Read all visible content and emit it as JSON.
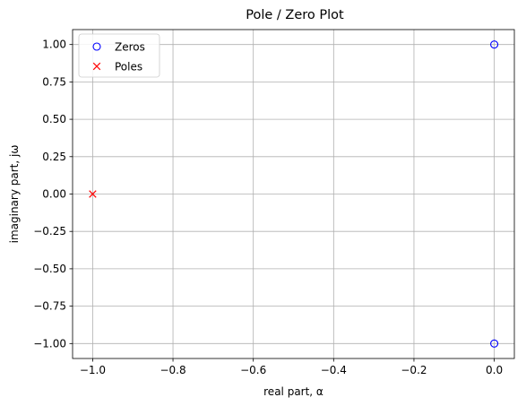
{
  "chart_data": {
    "type": "scatter",
    "title": "Pole / Zero Plot",
    "xlabel": "real part, α",
    "ylabel": "imaginary part, jω",
    "xlim": [
      -1.05,
      0.05
    ],
    "ylim": [
      -1.1,
      1.1
    ],
    "x_ticks": [
      -1.0,
      -0.8,
      -0.6,
      -0.4,
      -0.2,
      0.0
    ],
    "x_tick_labels": [
      "−1.0",
      "−0.8",
      "−0.6",
      "−0.4",
      "−0.2",
      "0.0"
    ],
    "y_ticks": [
      1.0,
      0.75,
      0.5,
      0.25,
      0.0,
      -0.25,
      -0.5,
      -0.75,
      -1.0
    ],
    "y_tick_labels": [
      "1.00",
      "0.75",
      "0.50",
      "0.25",
      "0.00",
      "−0.25",
      "−0.50",
      "−0.75",
      "−1.00"
    ],
    "grid": true,
    "legend_position": "upper-left",
    "series": [
      {
        "name": "Zeros",
        "marker": "circle-open",
        "color": "#0000ff",
        "points": [
          {
            "x": 0.0,
            "y": 1.0
          },
          {
            "x": 0.0,
            "y": -1.0
          }
        ]
      },
      {
        "name": "Poles",
        "marker": "x",
        "color": "#ff0000",
        "points": [
          {
            "x": -1.0,
            "y": 0.0
          }
        ]
      }
    ]
  }
}
